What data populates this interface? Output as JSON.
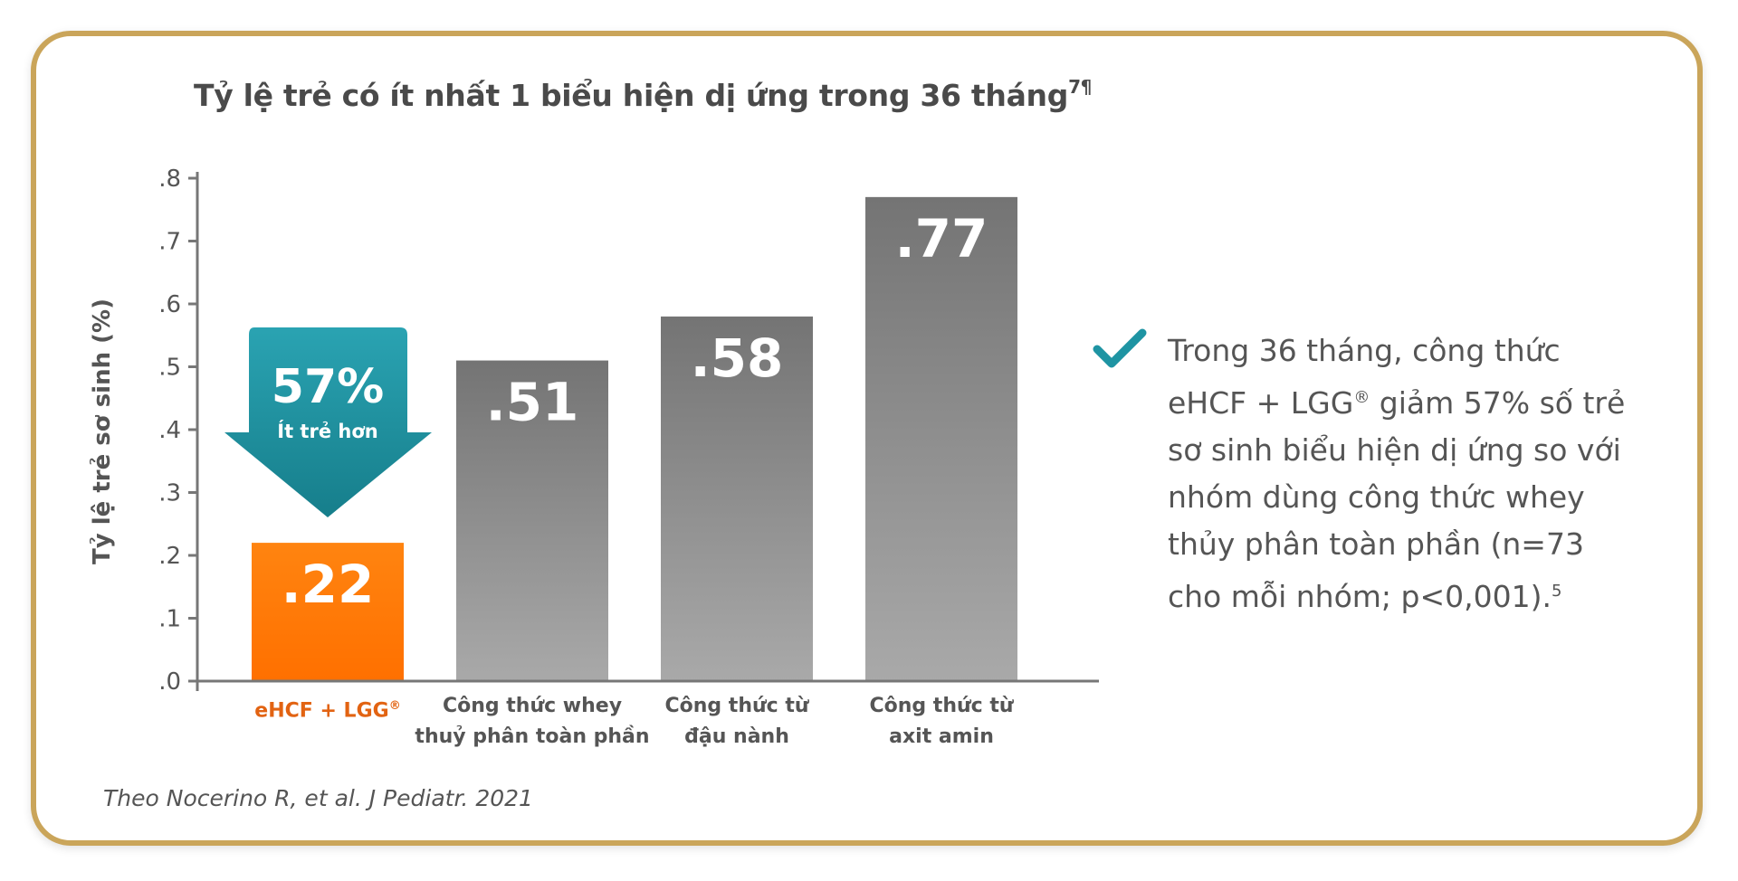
{
  "chart_data": {
    "type": "bar",
    "title": "Tỷ lệ trẻ có ít nhất 1 biểu hiện dị ứng trong 36 tháng",
    "title_superscript": "7¶",
    "ylabel": "Tỷ lệ trẻ sơ sinh (%)",
    "xlabel": "",
    "ylim": [
      0,
      0.8
    ],
    "yticks": [
      ".0",
      ".1",
      ".2",
      ".3",
      ".4",
      ".5",
      ".6",
      ".7",
      ".8"
    ],
    "grid": false,
    "categories": [
      {
        "line1": "eHCF + LGG",
        "sup": "®",
        "line2": ""
      },
      {
        "line1": "Công thức whey",
        "sup": "",
        "line2": "thuỷ phân toàn phần"
      },
      {
        "line1": "Công thức từ",
        "sup": "",
        "line2": "đậu nành"
      },
      {
        "line1": "Công thức từ",
        "sup": "",
        "line2": "axit amin"
      }
    ],
    "values": [
      0.22,
      0.51,
      0.58,
      0.77
    ],
    "value_labels": [
      ".22",
      ".51",
      ".58",
      ".77"
    ],
    "colors": [
      "#ff7a00",
      "#8a8a8a",
      "#8a8a8a",
      "#8a8a8a"
    ],
    "annotation": {
      "percent": "57%",
      "text": "Ít trẻ hơn",
      "color": "#1e94a3"
    }
  },
  "note": {
    "icon": "check-icon",
    "icon_color": "#1e94a3",
    "line1": "Trong 36 tháng, công thức",
    "line2_pre": "eHCF + LGG",
    "line2_sup": "®",
    "line2_post": " giảm 57% số trẻ",
    "line3": "sơ sinh biểu hiện dị ứng so với",
    "line4": "nhóm dùng công thức whey",
    "line5": "thủy phân toàn phần (n=73",
    "line6": "cho mỗi nhóm; p<0,001).",
    "line6_sup": "5"
  },
  "source": "Theo Nocerino R, et al. J Pediatr. 2021",
  "colors": {
    "border": "#caa55a",
    "accent_orange": "#ff7a00",
    "accent_teal": "#1e94a3",
    "text": "#555555"
  }
}
